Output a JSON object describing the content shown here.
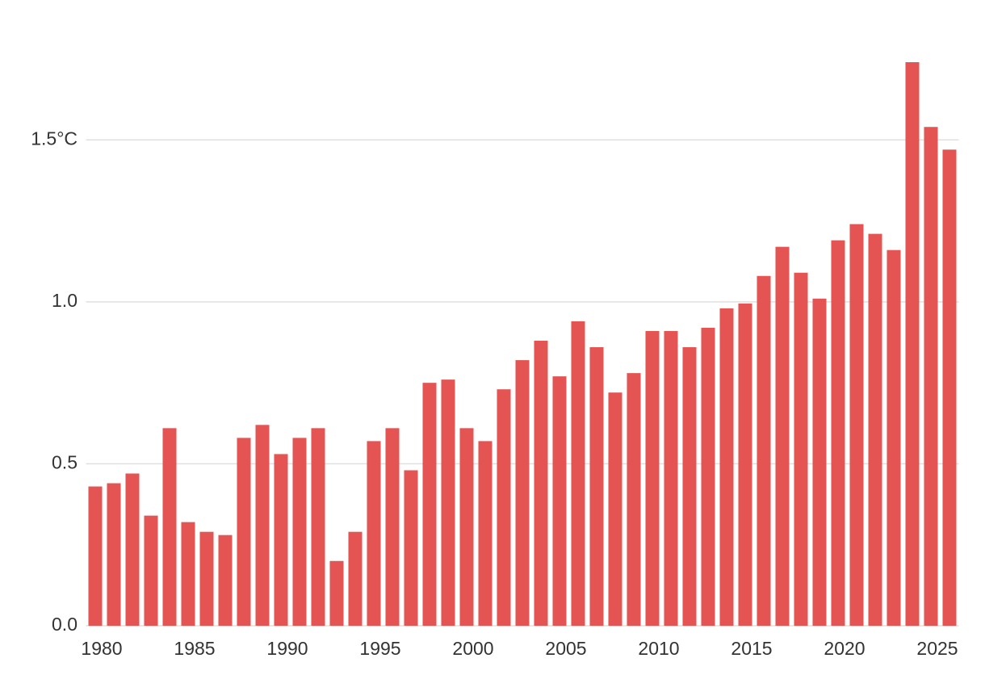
{
  "chart_data": {
    "type": "bar",
    "color": "#e35452",
    "grid": true,
    "x": [
      1980,
      1981,
      1982,
      1983,
      1984,
      1985,
      1986,
      1987,
      1988,
      1989,
      1990,
      1991,
      1992,
      1993,
      1994,
      1995,
      1996,
      1997,
      1998,
      1999,
      2000,
      2001,
      2002,
      2003,
      2004,
      2005,
      2006,
      2007,
      2008,
      2009,
      2010,
      2011,
      2012,
      2013,
      2014,
      2015,
      2016,
      2017,
      2018,
      2019,
      2020,
      2021,
      2022,
      2023,
      2024,
      2025,
      2026
    ],
    "values": [
      0.43,
      0.44,
      0.47,
      0.34,
      0.61,
      0.32,
      0.29,
      0.28,
      0.58,
      0.62,
      0.53,
      0.58,
      0.61,
      0.2,
      0.29,
      0.57,
      0.61,
      0.48,
      0.75,
      0.76,
      0.61,
      0.57,
      0.73,
      0.82,
      0.88,
      0.77,
      0.94,
      0.86,
      0.72,
      0.78,
      0.91,
      0.91,
      0.86,
      0.92,
      0.98,
      0.995,
      1.08,
      1.17,
      1.09,
      1.01,
      1.19,
      1.24,
      1.21,
      1.16,
      1.74,
      1.54,
      1.47
    ],
    "xlim": [
      1979.5,
      2026.5
    ],
    "xticks": [
      1980,
      1985,
      1990,
      1995,
      2000,
      2005,
      2010,
      2015,
      2020,
      2025
    ],
    "ylim": [
      0,
      1.75
    ],
    "yticks": [
      {
        "value": 0,
        "label": "0.0"
      },
      0.5,
      {
        "value": 1,
        "label": "1.0"
      },
      {
        "value": 1.5,
        "label": "1.5°C"
      }
    ]
  }
}
